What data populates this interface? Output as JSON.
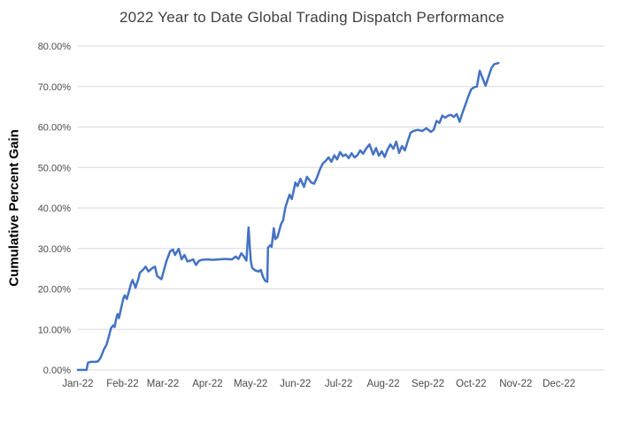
{
  "chart_data": {
    "type": "line",
    "title": "2022 Year to Date Global Trading Dispatch Performance",
    "xlabel": "",
    "ylabel": "Cumulative Percent Gain",
    "ylim": [
      0,
      80
    ],
    "x_range_days": 365,
    "grid": true,
    "legend": "none",
    "y_ticks": [
      {
        "value": 0,
        "label": "0.00%"
      },
      {
        "value": 10,
        "label": "10.00%"
      },
      {
        "value": 20,
        "label": "20.00%"
      },
      {
        "value": 30,
        "label": "30.00%"
      },
      {
        "value": 40,
        "label": "40.00%"
      },
      {
        "value": 50,
        "label": "50.00%"
      },
      {
        "value": 60,
        "label": "60.00%"
      },
      {
        "value": 70,
        "label": "70.00%"
      },
      {
        "value": 80,
        "label": "80.00%"
      }
    ],
    "x_tick_labels": [
      "Jan-22",
      "Feb-22",
      "Mar-22",
      "Apr-22",
      "May-22",
      "Jun-22",
      "Jul-22",
      "Aug-22",
      "Sep-22",
      "Oct-22",
      "Nov-22",
      "Dec-22"
    ],
    "x_tick_days": [
      0,
      31,
      59,
      90,
      120,
      151,
      181,
      212,
      243,
      273,
      304,
      334
    ],
    "series": [
      {
        "name": "Cumulative Percent Gain",
        "color": "#4472C4",
        "points": [
          [
            0,
            0
          ],
          [
            3,
            0
          ],
          [
            6,
            0
          ],
          [
            7,
            1.8
          ],
          [
            9,
            2
          ],
          [
            12,
            2
          ],
          [
            14,
            2.1
          ],
          [
            16,
            3.2
          ],
          [
            18,
            5
          ],
          [
            20,
            6.3
          ],
          [
            21.5,
            8.3
          ],
          [
            23,
            10.3
          ],
          [
            24.5,
            11
          ],
          [
            25.5,
            10.6
          ],
          [
            26.5,
            12.5
          ],
          [
            27.5,
            13.8
          ],
          [
            28.5,
            12.8
          ],
          [
            30,
            15.2
          ],
          [
            31.5,
            17.6
          ],
          [
            32.5,
            18.4
          ],
          [
            34,
            17.5
          ],
          [
            35.5,
            19.5
          ],
          [
            37,
            21.4
          ],
          [
            38,
            22.2
          ],
          [
            40,
            20.3
          ],
          [
            42,
            22.5
          ],
          [
            43,
            24
          ],
          [
            45.5,
            24.8
          ],
          [
            47,
            25.5
          ],
          [
            49,
            24.3
          ],
          [
            51.5,
            25.1
          ],
          [
            53.5,
            25.5
          ],
          [
            55,
            23.2
          ],
          [
            58,
            22.4
          ],
          [
            59.5,
            24.3
          ],
          [
            61.5,
            26.9
          ],
          [
            64,
            29.3
          ],
          [
            66,
            29.7
          ],
          [
            67.5,
            28.4
          ],
          [
            70,
            29.9
          ],
          [
            72,
            27.3
          ],
          [
            74,
            28.4
          ],
          [
            76,
            26.8
          ],
          [
            78,
            27
          ],
          [
            80,
            27.3
          ],
          [
            82,
            25.9
          ],
          [
            84,
            26.9
          ],
          [
            86,
            27.2
          ],
          [
            90,
            27.3
          ],
          [
            94,
            27.2
          ],
          [
            98,
            27.3
          ],
          [
            102,
            27.4
          ],
          [
            107,
            27.3
          ],
          [
            109.5,
            28
          ],
          [
            111.5,
            27.4
          ],
          [
            113.5,
            28.8
          ],
          [
            115,
            28.1
          ],
          [
            117,
            27
          ],
          [
            118.5,
            35.2
          ],
          [
            120,
            27
          ],
          [
            121,
            25.2
          ],
          [
            123,
            24.6
          ],
          [
            125.5,
            24.3
          ],
          [
            127,
            24.7
          ],
          [
            128.5,
            23
          ],
          [
            130,
            22
          ],
          [
            131.5,
            21.8
          ],
          [
            132,
            30.2
          ],
          [
            133.5,
            30.8
          ],
          [
            134.5,
            30.4
          ],
          [
            136,
            35
          ],
          [
            137,
            32.3
          ],
          [
            138.5,
            32.8
          ],
          [
            139.5,
            34
          ],
          [
            141,
            36
          ],
          [
            142.5,
            37
          ],
          [
            144,
            40
          ],
          [
            145.5,
            41.8
          ],
          [
            147,
            43.3
          ],
          [
            148.5,
            42.2
          ],
          [
            150,
            44.6
          ],
          [
            151,
            46.3
          ],
          [
            152.5,
            45.4
          ],
          [
            154.5,
            47.2
          ],
          [
            157,
            45.2
          ],
          [
            159,
            47.7
          ],
          [
            162,
            46.3
          ],
          [
            164,
            46
          ],
          [
            166,
            47.5
          ],
          [
            168,
            49.5
          ],
          [
            170,
            51
          ],
          [
            172,
            51.6
          ],
          [
            174,
            52.5
          ],
          [
            176,
            51.4
          ],
          [
            178,
            53
          ],
          [
            180,
            52
          ],
          [
            182,
            53.8
          ],
          [
            184,
            52.8
          ],
          [
            186,
            53.2
          ],
          [
            188,
            52.3
          ],
          [
            190,
            53.5
          ],
          [
            192,
            52.5
          ],
          [
            194,
            53
          ],
          [
            196,
            54.2
          ],
          [
            198,
            53.4
          ],
          [
            200,
            54.6
          ],
          [
            202.5,
            55.7
          ],
          [
            205,
            53.2
          ],
          [
            207,
            54.8
          ],
          [
            209,
            52.9
          ],
          [
            211,
            54
          ],
          [
            213,
            52.6
          ],
          [
            215,
            54.5
          ],
          [
            217,
            55.7
          ],
          [
            219,
            54.6
          ],
          [
            221,
            56.4
          ],
          [
            223,
            53.6
          ],
          [
            225,
            55.3
          ],
          [
            227,
            54.2
          ],
          [
            229,
            56.5
          ],
          [
            231,
            58.6
          ],
          [
            233,
            59
          ],
          [
            236,
            59.3
          ],
          [
            239,
            59
          ],
          [
            242,
            59.7
          ],
          [
            245,
            58.8
          ],
          [
            247,
            59.3
          ],
          [
            249,
            61.5
          ],
          [
            251,
            61
          ],
          [
            253,
            62.8
          ],
          [
            255,
            62.3
          ],
          [
            257,
            62.8
          ],
          [
            259,
            63
          ],
          [
            261,
            62.5
          ],
          [
            263,
            63.2
          ],
          [
            265,
            61.3
          ],
          [
            267,
            63.5
          ],
          [
            269,
            65.5
          ],
          [
            271,
            67.5
          ],
          [
            273,
            69.3
          ],
          [
            275,
            69.8
          ],
          [
            277,
            70
          ],
          [
            279,
            73.9
          ],
          [
            281,
            72
          ],
          [
            283,
            70.2
          ],
          [
            285,
            72.3
          ],
          [
            287,
            74.5
          ],
          [
            289,
            75.5
          ],
          [
            291,
            75.7
          ],
          [
            292,
            75.8
          ]
        ]
      }
    ]
  },
  "colors": {
    "line": "#4472C4",
    "grid": "#D9D9D9",
    "title_text": "#404040",
    "tick_text": "#4A4A4A",
    "axis_title_text": "#000000",
    "background": "#FFFFFF"
  }
}
